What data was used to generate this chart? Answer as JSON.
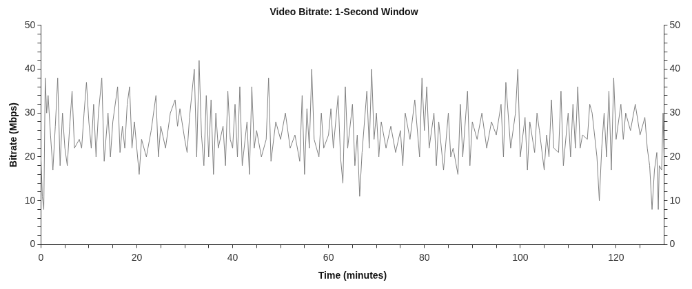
{
  "chart_data": {
    "type": "line",
    "title": "Video Bitrate: 1-Second Window",
    "xlabel": "Time (minutes)",
    "ylabel": "Bitrate (Mbps)",
    "xlim": [
      0,
      130
    ],
    "xticks": [
      0,
      {
        "value": 5,
        "label": null
      },
      {
        "value": 10,
        "label": null
      },
      {
        "value": 15,
        "label": null
      },
      20,
      {
        "value": 25,
        "label": null
      },
      {
        "value": 30,
        "label": null
      },
      {
        "value": 35,
        "label": null
      },
      40,
      {
        "value": 45,
        "label": null
      },
      {
        "value": 50,
        "label": null
      },
      {
        "value": 55,
        "label": null
      },
      60,
      {
        "value": 65,
        "label": null
      },
      {
        "value": 70,
        "label": null
      },
      {
        "value": 75,
        "label": null
      },
      80,
      {
        "value": 85,
        "label": null
      },
      {
        "value": 90,
        "label": null
      },
      {
        "value": 95,
        "label": null
      },
      100,
      {
        "value": 105,
        "label": null
      },
      {
        "value": 110,
        "label": null
      },
      {
        "value": 115,
        "label": null
      },
      120,
      {
        "value": 125,
        "label": null
      }
    ],
    "ylim": [
      0,
      50
    ],
    "yticks": [
      0,
      {
        "value": 2,
        "label": null
      },
      {
        "value": 4,
        "label": null
      },
      {
        "value": 6,
        "label": null
      },
      {
        "value": 8,
        "label": null
      },
      10,
      {
        "value": 12,
        "label": null
      },
      {
        "value": 14,
        "label": null
      },
      {
        "value": 16,
        "label": null
      },
      {
        "value": 18,
        "label": null
      },
      20,
      {
        "value": 22,
        "label": null
      },
      {
        "value": 24,
        "label": null
      },
      {
        "value": 26,
        "label": null
      },
      {
        "value": 28,
        "label": null
      },
      30,
      {
        "value": 32,
        "label": null
      },
      {
        "value": 34,
        "label": null
      },
      {
        "value": 36,
        "label": null
      },
      {
        "value": 38,
        "label": null
      },
      40,
      {
        "value": 42,
        "label": null
      },
      {
        "value": 44,
        "label": null
      },
      {
        "value": 46,
        "label": null
      },
      {
        "value": 48,
        "label": null
      },
      50
    ],
    "y2lim": [
      0,
      50
    ],
    "y2ticks": [
      0,
      {
        "value": 2,
        "label": null
      },
      {
        "value": 4,
        "label": null
      },
      {
        "value": 6,
        "label": null
      },
      {
        "value": 8,
        "label": null
      },
      10,
      {
        "value": 12,
        "label": null
      },
      {
        "value": 14,
        "label": null
      },
      {
        "value": 16,
        "label": null
      },
      {
        "value": 18,
        "label": null
      },
      20,
      {
        "value": 22,
        "label": null
      },
      {
        "value": 24,
        "label": null
      },
      {
        "value": 26,
        "label": null
      },
      {
        "value": 28,
        "label": null
      },
      30,
      {
        "value": 32,
        "label": null
      },
      {
        "value": 34,
        "label": null
      },
      {
        "value": 36,
        "label": null
      },
      {
        "value": 38,
        "label": null
      },
      40,
      {
        "value": 42,
        "label": null
      },
      {
        "value": 44,
        "label": null
      },
      {
        "value": 46,
        "label": null
      },
      {
        "value": 48,
        "label": null
      },
      50
    ],
    "x": [
      0,
      0.3,
      0.6,
      0.9,
      1.2,
      1.5,
      2,
      2.5,
      3,
      3.5,
      4,
      4.5,
      5,
      5.5,
      6,
      6.5,
      7,
      8,
      8.5,
      9,
      9.5,
      10,
      10.5,
      11,
      11.5,
      12,
      12.7,
      13.2,
      14,
      14.5,
      15,
      16,
      16.5,
      17,
      17.5,
      18,
      18.5,
      19,
      19.5,
      20.5,
      21,
      22,
      23,
      24,
      24.5,
      25,
      26,
      27,
      28,
      28.5,
      29,
      30,
      30.5,
      31,
      32,
      32.5,
      33,
      33.5,
      34,
      34.5,
      35,
      35.5,
      36,
      36.5,
      37,
      38,
      38.5,
      39,
      39.5,
      40,
      40.5,
      41,
      41.5,
      42,
      43,
      43.5,
      44,
      44.5,
      45,
      46,
      47,
      47.5,
      48,
      49,
      50,
      51,
      52,
      53,
      54,
      54.5,
      55,
      55.5,
      56,
      56.5,
      57,
      58,
      58.5,
      59,
      60,
      60.5,
      61,
      62,
      62.5,
      63,
      63.5,
      64,
      65,
      65.5,
      66,
      66.5,
      67,
      68,
      68.5,
      69,
      69.5,
      70,
      70.5,
      71,
      72,
      73,
      74,
      75,
      75.5,
      76,
      77,
      78,
      79,
      79.5,
      80,
      80.5,
      81,
      82,
      82.5,
      83,
      84,
      85,
      85.5,
      86,
      87,
      87.5,
      88,
      89,
      89.5,
      90,
      91,
      92,
      93,
      94,
      95,
      96,
      96.5,
      97,
      98,
      99,
      99.5,
      100,
      101,
      101.5,
      102,
      103,
      103.5,
      104,
      105,
      105.5,
      106,
      106.5,
      107,
      108,
      108.5,
      109,
      110,
      110.5,
      111,
      111.5,
      112,
      112.5,
      113,
      114,
      114.5,
      115,
      116,
      116.5,
      117,
      117.5,
      118,
      118.5,
      119,
      119.5,
      120,
      121,
      121.5,
      122,
      123,
      124,
      125,
      126,
      126.5,
      127,
      127.5,
      128,
      128.5,
      128.8,
      129,
      129.5,
      129.8,
      130
    ],
    "series": [
      {
        "color": "#808080",
        "values": [
          20,
          11,
          8,
          38,
          30,
          34,
          25,
          17,
          27,
          38,
          18,
          30,
          22,
          18,
          27,
          35,
          22,
          24,
          22,
          30,
          37,
          28,
          22,
          32,
          20,
          30,
          38,
          19,
          30,
          20,
          28,
          36,
          21,
          27,
          22,
          32,
          36,
          22,
          28,
          16,
          24,
          20,
          26,
          34,
          20,
          27,
          22,
          30,
          33,
          27,
          31,
          24,
          21,
          29,
          40,
          20,
          42,
          25,
          18,
          34,
          20,
          33,
          16,
          30,
          22,
          27,
          18,
          35,
          24,
          22,
          32,
          20,
          36,
          18,
          28,
          16,
          36,
          22,
          26,
          20,
          24,
          38,
          19,
          28,
          24,
          30,
          22,
          25,
          19,
          34,
          16,
          31,
          22,
          40,
          24,
          20,
          30,
          22,
          25,
          31,
          22,
          34,
          20,
          14,
          36,
          22,
          32,
          18,
          25,
          11,
          21,
          35,
          22,
          40,
          24,
          30,
          20,
          28,
          22,
          27,
          21,
          26,
          18,
          30,
          24,
          33,
          20,
          38,
          26,
          36,
          22,
          30,
          18,
          28,
          17,
          30,
          20,
          22,
          16,
          32,
          20,
          35,
          18,
          28,
          24,
          30,
          22,
          28,
          25,
          32,
          20,
          37,
          22,
          30,
          40,
          20,
          29,
          17,
          28,
          21,
          30,
          26,
          17,
          25,
          20,
          33,
          22,
          21,
          35,
          18,
          30,
          20,
          32,
          22,
          36,
          22,
          25,
          24,
          32,
          30,
          20,
          10,
          22,
          30,
          20,
          35,
          17,
          38,
          24,
          32,
          24,
          30,
          26,
          32,
          25,
          29,
          22,
          18,
          8,
          17,
          21,
          8,
          18,
          17,
          30,
          20
        ]
      }
    ]
  }
}
